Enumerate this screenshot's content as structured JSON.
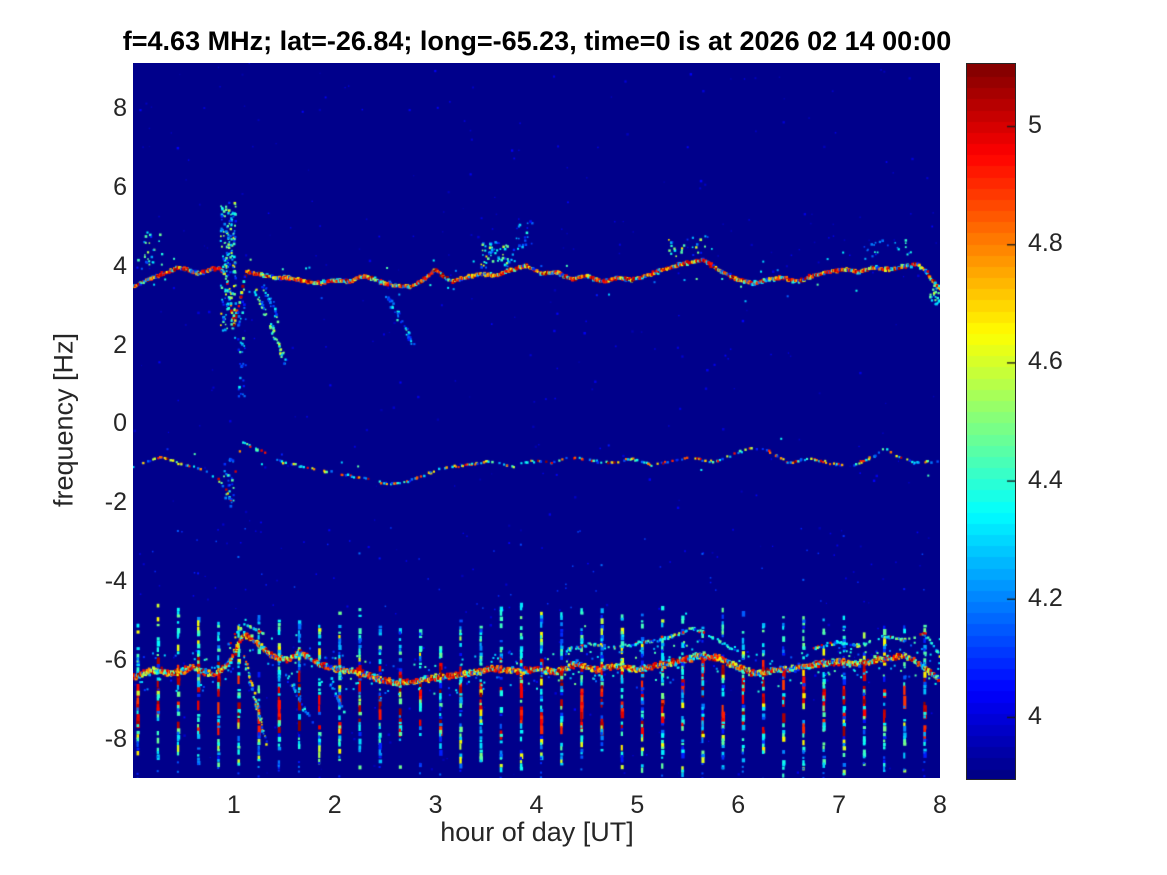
{
  "figure": {
    "title": "f=4.63 MHz;  lat=-26.84; long=-65.23, time=0 is at 2026 02 14 00:00",
    "background_color": "#ffffff",
    "text_color": "#262626"
  },
  "chart_data": {
    "type": "heatmap",
    "subtype": "doppler-spectrogram",
    "title": "f=4.63 MHz;  lat=-26.84; long=-65.23, time=0 is at 2026 02 14 00:00",
    "xlabel": "hour of day [UT]",
    "ylabel": "frequency [Hz]",
    "xlim": [
      0,
      8
    ],
    "ylim": [
      -9,
      9.15
    ],
    "xticks": [
      1,
      2,
      3,
      4,
      5,
      6,
      7,
      8
    ],
    "yticks": [
      8,
      6,
      4,
      2,
      0,
      -2,
      -4,
      -6,
      -8
    ],
    "grid": false,
    "colormap": "jet",
    "color_axis": [
      3.895,
      5.105
    ],
    "background_value": 3.9,
    "background_hex": "#00008b",
    "colorbar": {
      "position": "right",
      "tick_labels": [
        "5",
        "4.8",
        "4.6",
        "4.4",
        "4.2",
        "4"
      ],
      "tick_values": [
        5,
        4.8,
        4.6,
        4.4,
        4.2,
        4
      ],
      "levels": 64
    },
    "series": {
      "upper_carrier": {
        "desc": "dense wavy Doppler trace near +3.8 Hz, red/orange core with cyan fringe, dip near hour 1",
        "points": [
          [
            0,
            3.45
          ],
          [
            0.15,
            3.65
          ],
          [
            0.3,
            3.8
          ],
          [
            0.45,
            3.95
          ],
          [
            0.55,
            3.9
          ],
          [
            0.65,
            3.8
          ],
          [
            0.75,
            3.9
          ],
          [
            0.85,
            3.95
          ],
          [
            0.92,
            3.8
          ],
          [
            1.0,
            2.5
          ],
          [
            1.06,
            3.1
          ],
          [
            1.12,
            3.85
          ],
          [
            1.25,
            3.8
          ],
          [
            1.4,
            3.7
          ],
          [
            1.55,
            3.7
          ],
          [
            1.7,
            3.6
          ],
          [
            1.85,
            3.55
          ],
          [
            2.0,
            3.65
          ],
          [
            2.15,
            3.6
          ],
          [
            2.3,
            3.75
          ],
          [
            2.45,
            3.6
          ],
          [
            2.6,
            3.5
          ],
          [
            2.75,
            3.45
          ],
          [
            2.9,
            3.7
          ],
          [
            3.0,
            3.9
          ],
          [
            3.15,
            3.6
          ],
          [
            3.3,
            3.7
          ],
          [
            3.45,
            3.8
          ],
          [
            3.6,
            3.75
          ],
          [
            3.75,
            3.9
          ],
          [
            3.9,
            4.0
          ],
          [
            4.05,
            3.8
          ],
          [
            4.2,
            3.85
          ],
          [
            4.35,
            3.65
          ],
          [
            4.5,
            3.75
          ],
          [
            4.65,
            3.6
          ],
          [
            4.8,
            3.7
          ],
          [
            4.95,
            3.65
          ],
          [
            5.1,
            3.75
          ],
          [
            5.25,
            3.9
          ],
          [
            5.45,
            4.05
          ],
          [
            5.65,
            4.15
          ],
          [
            5.8,
            3.9
          ],
          [
            6.0,
            3.65
          ],
          [
            6.15,
            3.55
          ],
          [
            6.3,
            3.65
          ],
          [
            6.45,
            3.7
          ],
          [
            6.6,
            3.6
          ],
          [
            6.75,
            3.75
          ],
          [
            6.9,
            3.85
          ],
          [
            7.05,
            3.9
          ],
          [
            7.2,
            3.85
          ],
          [
            7.35,
            3.95
          ],
          [
            7.5,
            3.9
          ],
          [
            7.65,
            4.0
          ],
          [
            7.78,
            4.05
          ],
          [
            7.88,
            3.8
          ],
          [
            7.95,
            3.55
          ],
          [
            8.0,
            3.4
          ]
        ]
      },
      "mid_carrier": {
        "desc": "thin dotted trace near -1 Hz with spike at hour ~1",
        "points": [
          [
            0,
            -1.1
          ],
          [
            0.15,
            -0.95
          ],
          [
            0.3,
            -0.85
          ],
          [
            0.45,
            -1.0
          ],
          [
            0.6,
            -1.1
          ],
          [
            0.75,
            -1.25
          ],
          [
            0.88,
            -1.5
          ],
          [
            0.97,
            -1.95
          ],
          [
            1.02,
            -1.3
          ],
          [
            1.08,
            -0.45
          ],
          [
            1.15,
            -0.55
          ],
          [
            1.3,
            -0.75
          ],
          [
            1.5,
            -1.0
          ],
          [
            1.7,
            -1.1
          ],
          [
            1.9,
            -1.2
          ],
          [
            2.1,
            -1.3
          ],
          [
            2.3,
            -1.4
          ],
          [
            2.55,
            -1.55
          ],
          [
            2.75,
            -1.45
          ],
          [
            2.95,
            -1.25
          ],
          [
            3.15,
            -1.1
          ],
          [
            3.35,
            -1.05
          ],
          [
            3.55,
            -0.95
          ],
          [
            3.75,
            -1.1
          ],
          [
            3.95,
            -0.95
          ],
          [
            4.15,
            -1.0
          ],
          [
            4.35,
            -0.85
          ],
          [
            4.55,
            -0.95
          ],
          [
            4.75,
            -1.0
          ],
          [
            4.95,
            -0.9
          ],
          [
            5.15,
            -1.05
          ],
          [
            5.35,
            -0.95
          ],
          [
            5.55,
            -0.85
          ],
          [
            5.75,
            -1.0
          ],
          [
            5.95,
            -0.8
          ],
          [
            6.1,
            -0.6
          ],
          [
            6.3,
            -0.7
          ],
          [
            6.5,
            -1.0
          ],
          [
            6.7,
            -0.9
          ],
          [
            6.9,
            -1.0
          ],
          [
            7.1,
            -1.1
          ],
          [
            7.3,
            -0.9
          ],
          [
            7.45,
            -0.65
          ],
          [
            7.6,
            -0.85
          ],
          [
            7.75,
            -1.0
          ],
          [
            7.9,
            -0.95
          ],
          [
            8.0,
            -1.0
          ]
        ]
      },
      "lower_carrier": {
        "desc": "broad noisy trace near -6.2 Hz, peak up to -5.3 near hour 1.1",
        "points": [
          [
            0,
            -6.45
          ],
          [
            0.2,
            -6.25
          ],
          [
            0.4,
            -6.35
          ],
          [
            0.6,
            -6.2
          ],
          [
            0.8,
            -6.4
          ],
          [
            0.95,
            -6.1
          ],
          [
            1.1,
            -5.35
          ],
          [
            1.25,
            -5.6
          ],
          [
            1.4,
            -5.95
          ],
          [
            1.55,
            -6.0
          ],
          [
            1.65,
            -5.8
          ],
          [
            1.8,
            -6.05
          ],
          [
            2.0,
            -6.25
          ],
          [
            2.2,
            -6.3
          ],
          [
            2.4,
            -6.45
          ],
          [
            2.6,
            -6.6
          ],
          [
            2.8,
            -6.55
          ],
          [
            3.0,
            -6.45
          ],
          [
            3.2,
            -6.4
          ],
          [
            3.4,
            -6.3
          ],
          [
            3.6,
            -6.2
          ],
          [
            3.8,
            -6.3
          ],
          [
            4.0,
            -6.25
          ],
          [
            4.2,
            -6.3
          ],
          [
            4.4,
            -6.1
          ],
          [
            4.6,
            -6.25
          ],
          [
            4.8,
            -6.15
          ],
          [
            5.0,
            -6.25
          ],
          [
            5.2,
            -6.15
          ],
          [
            5.4,
            -6.05
          ],
          [
            5.6,
            -5.9
          ],
          [
            5.8,
            -5.95
          ],
          [
            6.0,
            -6.2
          ],
          [
            6.2,
            -6.35
          ],
          [
            6.4,
            -6.25
          ],
          [
            6.6,
            -6.2
          ],
          [
            6.8,
            -6.1
          ],
          [
            7.0,
            -6.05
          ],
          [
            7.2,
            -6.1
          ],
          [
            7.4,
            -6.0
          ],
          [
            7.6,
            -5.9
          ],
          [
            7.75,
            -6.0
          ],
          [
            7.9,
            -6.3
          ],
          [
            8.0,
            -6.55
          ]
        ]
      },
      "lower_secondary": {
        "desc": "faint cyan strand above the lower carrier",
        "segments": [
          [
            [
              0.95,
              -5.6
            ],
            [
              1.1,
              -5.1
            ],
            [
              1.3,
              -5.35
            ]
          ],
          [
            [
              4.3,
              -5.75
            ],
            [
              4.55,
              -5.6
            ],
            [
              4.8,
              -5.7
            ],
            [
              5.05,
              -5.55
            ],
            [
              5.3,
              -5.45
            ],
            [
              5.55,
              -5.2
            ],
            [
              5.8,
              -5.5
            ],
            [
              6.0,
              -5.8
            ]
          ],
          [
            [
              6.75,
              -5.7
            ],
            [
              7.0,
              -5.55
            ],
            [
              7.2,
              -5.65
            ],
            [
              7.45,
              -5.4
            ],
            [
              7.65,
              -5.5
            ],
            [
              7.85,
              -5.35
            ],
            [
              8.0,
              -5.9
            ]
          ]
        ]
      }
    },
    "pulse_train": {
      "desc": "regular vertical dashed stripes in lower band (12-min cadence)",
      "t_start": 0.045,
      "t_step": 0.2,
      "count": 40,
      "f_top": -4.8,
      "f_bottom": -8.7,
      "red_band": [
        -5.9,
        -7.8
      ]
    },
    "events": [
      {
        "kind": "box",
        "t": [
          0.87,
          1.02
        ],
        "f": [
          2.3,
          5.6
        ],
        "n": 170,
        "palette": "cool",
        "desc": "strong scatter burst near hour 1"
      },
      {
        "kind": "box",
        "t": [
          1.04,
          1.12
        ],
        "f": [
          0.6,
          3.2
        ],
        "n": 40,
        "palette": "blue"
      },
      {
        "kind": "diag",
        "t": [
          1.22,
          1.52
        ],
        "f": [
          3.35,
          1.55
        ],
        "n": 55,
        "palette": "cool"
      },
      {
        "kind": "diag",
        "t": [
          1.28,
          1.45
        ],
        "f": [
          3.6,
          2.6
        ],
        "n": 30,
        "palette": "blue"
      },
      {
        "kind": "diag",
        "t": [
          2.52,
          2.8
        ],
        "f": [
          3.25,
          1.9
        ],
        "n": 40,
        "palette": "blue"
      },
      {
        "kind": "box",
        "t": [
          3.45,
          3.78
        ],
        "f": [
          3.95,
          4.6
        ],
        "n": 55,
        "palette": "cool"
      },
      {
        "kind": "box",
        "t": [
          3.8,
          3.97
        ],
        "f": [
          4.4,
          5.15
        ],
        "n": 18,
        "palette": "blue"
      },
      {
        "kind": "box",
        "t": [
          0.05,
          0.3
        ],
        "f": [
          4.0,
          4.9
        ],
        "n": 25,
        "palette": "cool"
      },
      {
        "kind": "box",
        "t": [
          5.3,
          5.75
        ],
        "f": [
          4.2,
          4.75
        ],
        "n": 25,
        "palette": "cool"
      },
      {
        "kind": "box",
        "t": [
          7.2,
          7.7
        ],
        "f": [
          4.2,
          4.7
        ],
        "n": 20,
        "palette": "blue"
      },
      {
        "kind": "box",
        "t": [
          7.9,
          8.0
        ],
        "f": [
          3.0,
          3.5
        ],
        "n": 25,
        "palette": "cool"
      },
      {
        "kind": "box",
        "t": [
          0.9,
          1.0
        ],
        "f": [
          -2.15,
          -0.7
        ],
        "n": 30,
        "palette": "blue"
      },
      {
        "kind": "diag",
        "t": [
          1.1,
          1.32
        ],
        "f": [
          -5.9,
          -8.1
        ],
        "n": 60,
        "palette": "mixL"
      },
      {
        "kind": "diag",
        "t": [
          1.5,
          1.78
        ],
        "f": [
          -6.3,
          -7.6
        ],
        "n": 30,
        "palette": "blue"
      },
      {
        "kind": "diag",
        "t": [
          1.95,
          2.1
        ],
        "f": [
          -6.5,
          -7.4
        ],
        "n": 18,
        "palette": "blue"
      }
    ],
    "render_seed": 11
  }
}
